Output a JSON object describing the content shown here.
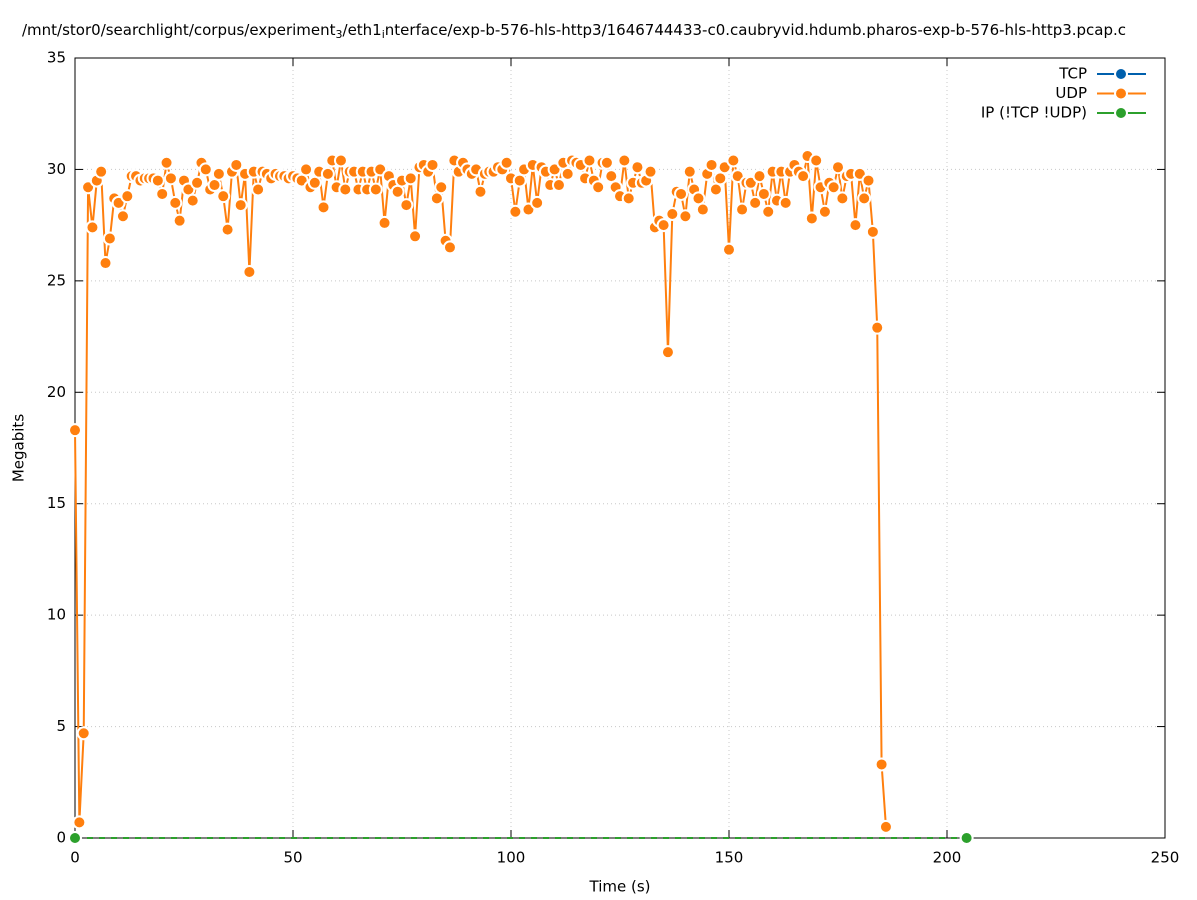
{
  "chart_data": {
    "type": "line",
    "title_parts": [
      "/mnt/stor0/searchlight/corpus/experiment",
      "3",
      "/eth1",
      "i",
      "nterface/exp-b-576-hls-http3/1646744433-c0.caubryvid.hdumb.pharos-exp-b-576-hls-http3.pcap.c"
    ],
    "xlabel": "Time (s)",
    "ylabel": "Megabits",
    "xlim": [
      0,
      250
    ],
    "xticks": [
      0,
      50,
      100,
      150,
      200,
      250
    ],
    "ylim": [
      0,
      35
    ],
    "yticks": [
      0,
      5,
      10,
      15,
      20,
      25,
      30,
      35
    ],
    "grid": true,
    "legend": "top-right",
    "series": [
      {
        "name": "TCP",
        "color": "#0060ad",
        "x": [],
        "values": []
      },
      {
        "name": "UDP",
        "color": "#ff7f0e",
        "x": [
          0,
          1,
          2,
          3,
          4,
          5,
          6,
          7,
          8,
          9,
          10,
          11,
          12,
          13,
          14,
          15,
          16,
          17,
          18,
          19,
          20,
          21,
          22,
          23,
          24,
          25,
          26,
          27,
          28,
          29,
          30,
          31,
          32,
          33,
          34,
          35,
          36,
          37,
          38,
          39,
          40,
          41,
          42,
          43,
          44,
          45,
          46,
          47,
          48,
          49,
          50,
          51,
          52,
          53,
          54,
          55,
          56,
          57,
          58,
          59,
          60,
          61,
          62,
          63,
          64,
          65,
          66,
          67,
          68,
          69,
          70,
          71,
          72,
          73,
          74,
          75,
          76,
          77,
          78,
          79,
          80,
          81,
          82,
          83,
          84,
          85,
          86,
          87,
          88,
          89,
          90,
          91,
          92,
          93,
          94,
          95,
          96,
          97,
          98,
          99,
          100,
          101,
          102,
          103,
          104,
          105,
          106,
          107,
          108,
          109,
          110,
          111,
          112,
          113,
          114,
          115,
          116,
          117,
          118,
          119,
          120,
          121,
          122,
          123,
          124,
          125,
          126,
          127,
          128,
          129,
          130,
          131,
          132,
          133,
          134,
          135,
          136,
          137,
          138,
          139,
          140,
          141,
          142,
          143,
          144,
          145,
          146,
          147,
          148,
          149,
          150,
          151,
          152,
          153,
          154,
          155,
          156,
          157,
          158,
          159,
          160,
          161,
          162,
          163,
          164,
          165,
          166,
          167,
          168,
          169,
          170,
          171,
          172,
          173,
          174,
          175,
          176,
          177,
          178,
          179,
          180,
          181,
          182,
          183,
          184,
          185,
          186
        ],
        "values": [
          18.3,
          0.7,
          4.7,
          29.2,
          27.4,
          29.5,
          29.9,
          25.8,
          26.9,
          28.7,
          28.5,
          27.9,
          28.8,
          29.7,
          29.7,
          29.5,
          29.6,
          29.6,
          29.6,
          29.5,
          28.9,
          30.3,
          29.6,
          28.5,
          27.7,
          29.5,
          29.1,
          28.6,
          29.4,
          30.3,
          30.0,
          29.1,
          29.3,
          29.8,
          28.8,
          27.3,
          29.9,
          30.2,
          28.4,
          29.8,
          25.4,
          29.9,
          29.1,
          29.9,
          29.8,
          29.6,
          29.8,
          29.7,
          29.7,
          29.6,
          29.7,
          29.6,
          29.5,
          30.0,
          29.2,
          29.4,
          29.9,
          28.3,
          29.8,
          30.4,
          29.2,
          30.4,
          29.1,
          29.9,
          29.9,
          29.1,
          29.9,
          29.1,
          29.9,
          29.1,
          30.0,
          27.6,
          29.7,
          29.3,
          29.0,
          29.5,
          28.4,
          29.6,
          27.0,
          30.1,
          30.2,
          29.9,
          30.2,
          28.7,
          29.2,
          26.8,
          26.5,
          30.4,
          29.9,
          30.3,
          30.0,
          29.8,
          30.0,
          29.0,
          29.8,
          29.9,
          29.9,
          30.1,
          30.0,
          30.3,
          29.6,
          28.1,
          29.5,
          30.0,
          28.2,
          30.2,
          28.5,
          30.1,
          29.9,
          29.3,
          30.0,
          29.3,
          30.3,
          29.8,
          30.4,
          30.3,
          30.2,
          29.6,
          30.4,
          29.5,
          29.2,
          30.3,
          30.3,
          29.7,
          29.2,
          28.8,
          30.4,
          28.7,
          29.4,
          30.1,
          29.4,
          29.5,
          29.9,
          27.4,
          27.7,
          27.5,
          21.8,
          28.0,
          29.0,
          28.9,
          27.9,
          29.9,
          29.1,
          28.7,
          28.2,
          29.8,
          30.2,
          29.1,
          29.6,
          30.1,
          26.4,
          30.4,
          29.7,
          28.2,
          29.4,
          29.4,
          28.5,
          29.7,
          28.9,
          28.1,
          29.9,
          28.6,
          29.9,
          28.5,
          29.9,
          30.2,
          29.9,
          29.7,
          30.6,
          27.8,
          30.4,
          29.2,
          28.1,
          29.4,
          29.2,
          30.1,
          28.7,
          29.7,
          29.8,
          27.5,
          29.8,
          28.7,
          29.5,
          27.2,
          22.9,
          3.3,
          0.5
        ]
      },
      {
        "name": "IP (!TCP  !UDP)",
        "color": "#2ca02c",
        "x": [
          0,
          204.5
        ],
        "values": [
          0,
          0
        ]
      }
    ]
  }
}
